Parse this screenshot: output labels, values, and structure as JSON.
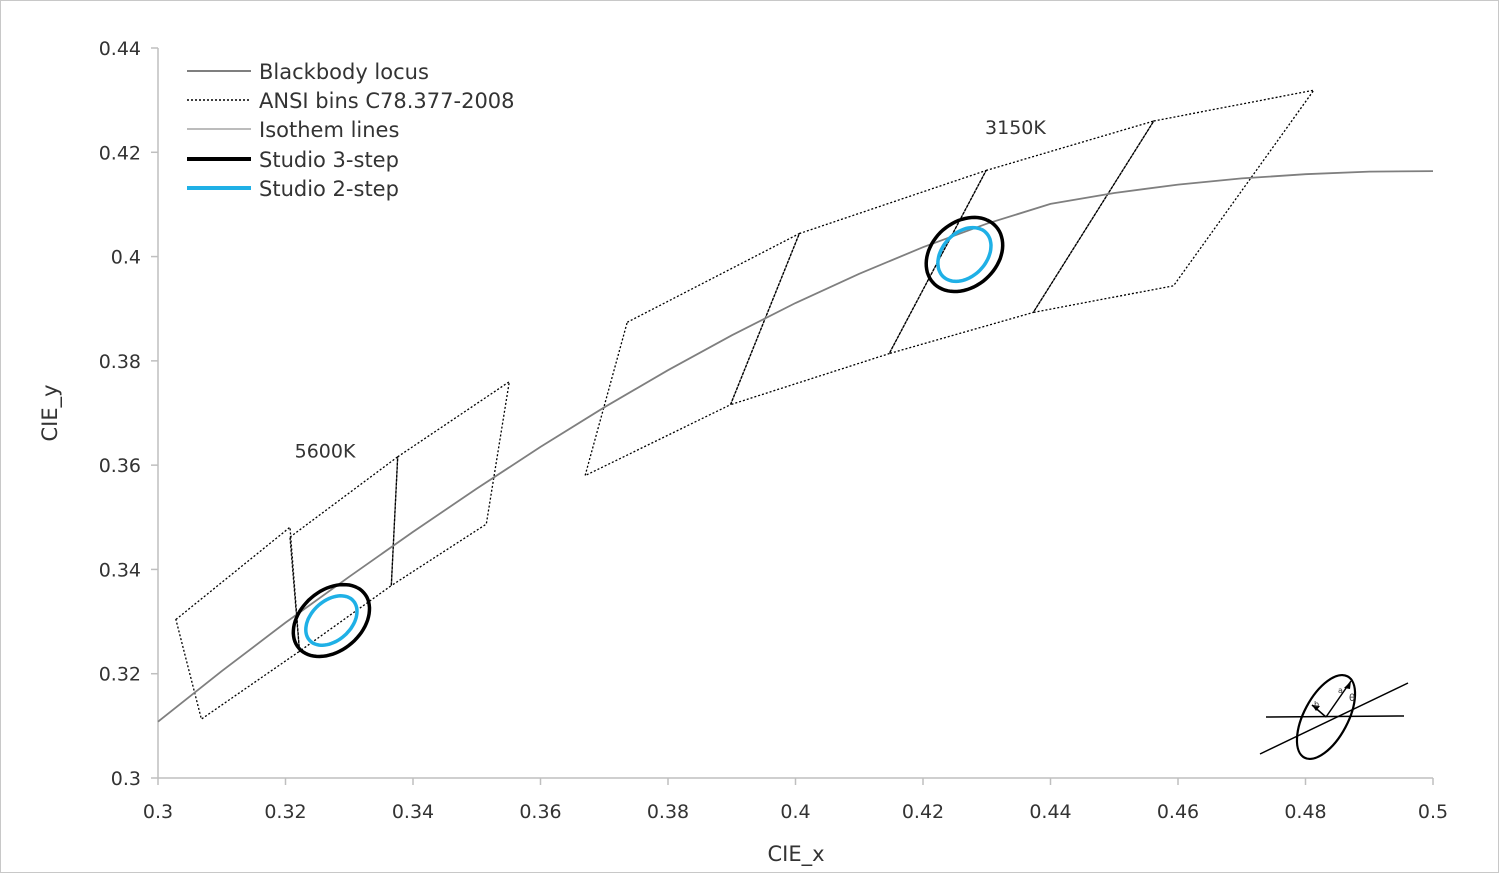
{
  "chart_data": {
    "type": "scatter",
    "xlabel": "CIE_x",
    "ylabel": "CIE_y",
    "xlim": [
      0.3,
      0.5
    ],
    "ylim": [
      0.3,
      0.44
    ],
    "x_ticks": [
      "0.3",
      "0.32",
      "0.34",
      "0.36",
      "0.38",
      "0.4",
      "0.42",
      "0.44",
      "0.46",
      "0.48",
      "0.5"
    ],
    "y_ticks": [
      "0.3",
      "0.32",
      "0.34",
      "0.36",
      "0.38",
      "0.4",
      "0.42",
      "0.44"
    ],
    "grid": false,
    "legend_position": "top-left",
    "colors": {
      "blackbody": "#7f7f7f",
      "ansi": "#000000",
      "isotherm": "#a6a6a6",
      "studio3": "#000000",
      "studio2": "#1fb0e6"
    },
    "series": [
      {
        "name": "Blackbody locus",
        "style": "solid-gray",
        "x": [
          0.3,
          0.31,
          0.32,
          0.33,
          0.34,
          0.35,
          0.36,
          0.37,
          0.38,
          0.39,
          0.4,
          0.41,
          0.42,
          0.43,
          0.44,
          0.45,
          0.46,
          0.47,
          0.48,
          0.49,
          0.5
        ],
        "y": [
          0.3108,
          0.3205,
          0.3298,
          0.3386,
          0.3472,
          0.3555,
          0.3635,
          0.3711,
          0.3782,
          0.3849,
          0.3911,
          0.3967,
          0.4018,
          0.4063,
          0.4101,
          0.4122,
          0.4138,
          0.415,
          0.4158,
          0.4163,
          0.4164
        ]
      },
      {
        "name": "ANSI bins C78.377-2008",
        "style": "dotted-black",
        "polygons": [
          {
            "x": [
              0.3028,
              0.3207,
              0.3222,
              0.3068
            ],
            "y": [
              0.3304,
              0.3481,
              0.3243,
              0.3113
            ]
          },
          {
            "x": [
              0.3207,
              0.3376,
              0.3366,
              0.3222
            ],
            "y": [
              0.3462,
              0.3616,
              0.3369,
              0.3243
            ]
          },
          {
            "x": [
              0.3376,
              0.3551,
              0.3515,
              0.3366
            ],
            "y": [
              0.3616,
              0.376,
              0.3487,
              0.3369
            ]
          },
          {
            "x": [
              0.3736,
              0.4006,
              0.3898,
              0.367
            ],
            "y": [
              0.3874,
              0.4044,
              0.3716,
              0.358
            ]
          },
          {
            "x": [
              0.4006,
              0.4299,
              0.4147,
              0.3898
            ],
            "y": [
              0.4044,
              0.4165,
              0.3814,
              0.3716
            ]
          },
          {
            "x": [
              0.4299,
              0.4562,
              0.4373,
              0.4147
            ],
            "y": [
              0.4165,
              0.426,
              0.3893,
              0.3814
            ]
          },
          {
            "x": [
              0.4562,
              0.4813,
              0.4593,
              0.4373
            ],
            "y": [
              0.426,
              0.4319,
              0.3944,
              0.3893
            ]
          }
        ]
      },
      {
        "name": "Isothem lines",
        "style": "solid-lightgray",
        "segments": [
          {
            "x": [
              0.3207,
              0.3222
            ],
            "y": [
              0.3462,
              0.3243
            ]
          },
          {
            "x": [
              0.3376,
              0.3366
            ],
            "y": [
              0.3616,
              0.3369
            ]
          },
          {
            "x": [
              0.4006,
              0.3898
            ],
            "y": [
              0.4044,
              0.3716
            ]
          },
          {
            "x": [
              0.4299,
              0.4147
            ],
            "y": [
              0.4165,
              0.3814
            ]
          },
          {
            "x": [
              0.4562,
              0.4373
            ],
            "y": [
              0.426,
              0.3893
            ]
          }
        ]
      },
      {
        "name": "Studio 3-step",
        "style": "ellipse-black",
        "ellipses": [
          {
            "cx": 0.3272,
            "cy": 0.3302,
            "rx": 0.0075,
            "ry": 0.0052,
            "angle_deg": 57
          },
          {
            "cx": 0.4265,
            "cy": 0.4004,
            "rx": 0.0075,
            "ry": 0.0055,
            "angle_deg": 62
          }
        ]
      },
      {
        "name": "Studio 2-step",
        "style": "ellipse-blue",
        "ellipses": [
          {
            "cx": 0.3272,
            "cy": 0.3302,
            "rx": 0.0052,
            "ry": 0.0034,
            "angle_deg": 57
          },
          {
            "cx": 0.4265,
            "cy": 0.4004,
            "rx": 0.0055,
            "ry": 0.0037,
            "angle_deg": 62
          }
        ]
      }
    ],
    "annotations": [
      {
        "text": "5600K",
        "x": 0.3262,
        "y": 0.3615
      },
      {
        "text": "3150K",
        "x": 0.4345,
        "y": 0.4235
      }
    ],
    "inset_icon": "ellipse-axes-diagram-icon"
  }
}
